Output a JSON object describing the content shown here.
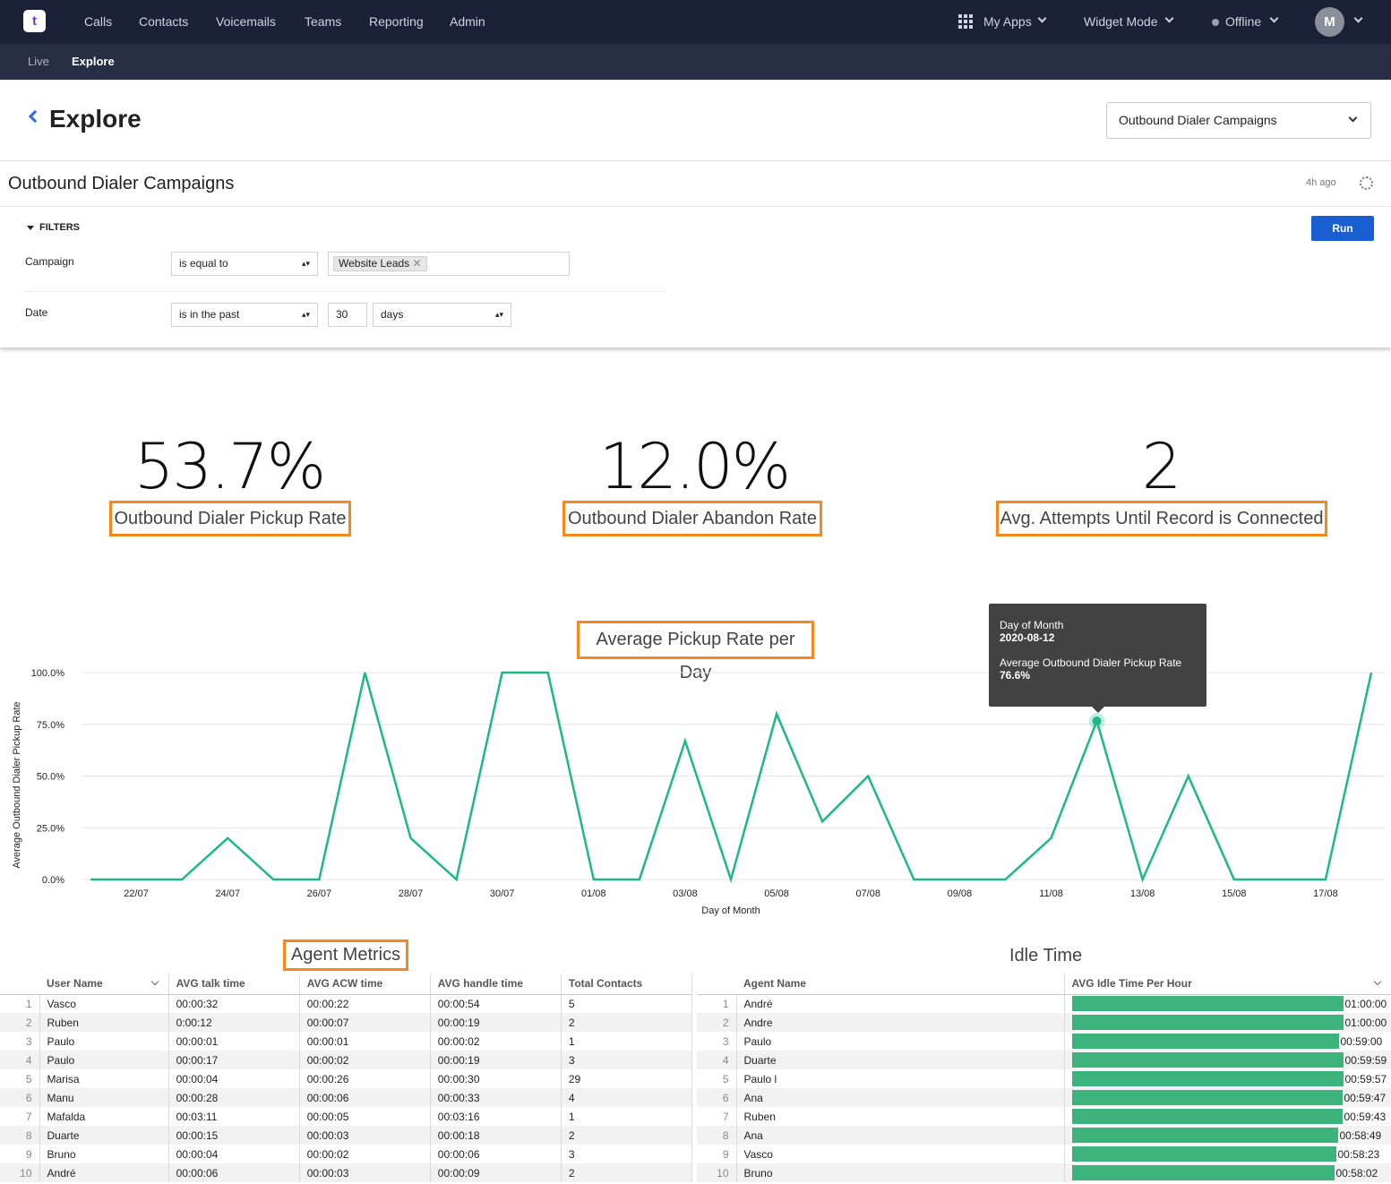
{
  "app": {
    "logo": "t",
    "nav": [
      "Calls",
      "Contacts",
      "Voicemails",
      "Teams",
      "Reporting",
      "Admin"
    ],
    "my_apps": "My Apps",
    "widget_mode": "Widget Mode",
    "status": "Offline",
    "avatar": "M",
    "subnav": [
      "Live",
      "Explore"
    ]
  },
  "page": {
    "title": "Explore",
    "selector": "Outbound Dialer Campaigns",
    "dashboard_title": "Outbound Dialer Campaigns",
    "updated": "4h ago"
  },
  "filters": {
    "label": "FILTERS",
    "run": "Run",
    "campaign_label": "Campaign",
    "campaign_op": "is equal to",
    "campaign_tag": "Website Leads",
    "date_label": "Date",
    "date_op": "is in the past",
    "date_num": "30",
    "date_unit": "days"
  },
  "kpis": [
    {
      "value": "53.7%",
      "label": "Outbound Dialer Pickup Rate"
    },
    {
      "value": "12.0%",
      "label": "Outbound Dialer Abandon Rate"
    },
    {
      "value": "2",
      "label": "Avg. Attempts Until Record is Connected"
    }
  ],
  "chart_data": {
    "type": "line",
    "title": "Average Pickup Rate per Day",
    "xlabel": "Day of Month",
    "ylabel": "Average Outbound Dialer Pickup Rate",
    "ylim": [
      0,
      100
    ],
    "yticks": [
      "0.0%",
      "25.0%",
      "50.0%",
      "75.0%",
      "100.0%"
    ],
    "xticks": [
      "22/07",
      "24/07",
      "26/07",
      "28/07",
      "30/07",
      "01/08",
      "03/08",
      "05/08",
      "07/08",
      "09/08",
      "11/08",
      "13/08",
      "15/08",
      "17/08"
    ],
    "x": [
      "21/07",
      "22/07",
      "23/07",
      "24/07",
      "25/07",
      "26/07",
      "27/07",
      "28/07",
      "29/07",
      "30/07",
      "31/07",
      "01/08",
      "02/08",
      "03/08",
      "04/08",
      "05/08",
      "06/08",
      "07/08",
      "08/08",
      "09/08",
      "10/08",
      "11/08",
      "12/08",
      "13/08",
      "14/08",
      "15/08",
      "16/08",
      "17/08",
      "18/08"
    ],
    "values": [
      0,
      0,
      0,
      20,
      0,
      0,
      100,
      20,
      0,
      100,
      100,
      0,
      0,
      67,
      0,
      80,
      28,
      50,
      0,
      0,
      0,
      20,
      76.6,
      0,
      50,
      0,
      0,
      0,
      100
    ],
    "color": "#1cb887",
    "tooltip": {
      "x_label": "Day of Month",
      "x_value": "2020-08-12",
      "y_label": "Average Outbound Dialer Pickup Rate",
      "y_value": "76.6%"
    }
  },
  "agent_metrics": {
    "title": "Agent Metrics",
    "columns": [
      "User Name",
      "AVG talk time",
      "AVG ACW time",
      "AVG handle time",
      "Total Contacts"
    ],
    "rows": [
      [
        "1",
        "Vasco",
        "00:00:32",
        "00:00:22",
        "00:00:54",
        "5"
      ],
      [
        "2",
        "Ruben",
        "0:00:12",
        "00:00:07",
        "00:00:19",
        "2"
      ],
      [
        "3",
        "Paulo",
        "00:00:01",
        "00:00:01",
        "00:00:02",
        "1"
      ],
      [
        "4",
        "Paulo",
        "00:00:17",
        "00:00:02",
        "00:00:19",
        "3"
      ],
      [
        "5",
        "Marisa",
        "00:00:04",
        "00:00:26",
        "00:00:30",
        "29"
      ],
      [
        "6",
        "Manu",
        "00:00:28",
        "00:00:06",
        "00:00:33",
        "4"
      ],
      [
        "7",
        "Mafalda",
        "00:03:11",
        "00:00:05",
        "00:03:16",
        "1"
      ],
      [
        "8",
        "Duarte",
        "00:00:15",
        "00:00:03",
        "00:00:18",
        "2"
      ],
      [
        "9",
        "Bruno",
        "00:00:04",
        "00:00:02",
        "00:00:06",
        "3"
      ],
      [
        "10",
        "André",
        "00:00:06",
        "00:00:03",
        "00:00:09",
        "2"
      ]
    ]
  },
  "idle_time": {
    "title": "Idle Time",
    "columns": [
      "Agent Name",
      "AVG Idle Time Per Hour"
    ],
    "rows": [
      [
        "1",
        "André",
        "01:00:00",
        1.0
      ],
      [
        "2",
        "Andre",
        "01:00:00",
        1.0
      ],
      [
        "3",
        "Paulo",
        "00:59:00",
        0.983
      ],
      [
        "4",
        "Duarte",
        "00:59:59",
        0.9997
      ],
      [
        "5",
        "Paulo l",
        "00:59:57",
        0.9992
      ],
      [
        "6",
        "Ana",
        "00:59:47",
        0.9964
      ],
      [
        "7",
        "Ruben",
        "00:59:43",
        0.9953
      ],
      [
        "8",
        "Ana",
        "00:58:49",
        0.9803
      ],
      [
        "9",
        "Vasco",
        "00:58:23",
        0.9731
      ],
      [
        "10",
        "Bruno",
        "00:58:02",
        0.9672
      ]
    ],
    "bar_color": "#3bb37a"
  }
}
